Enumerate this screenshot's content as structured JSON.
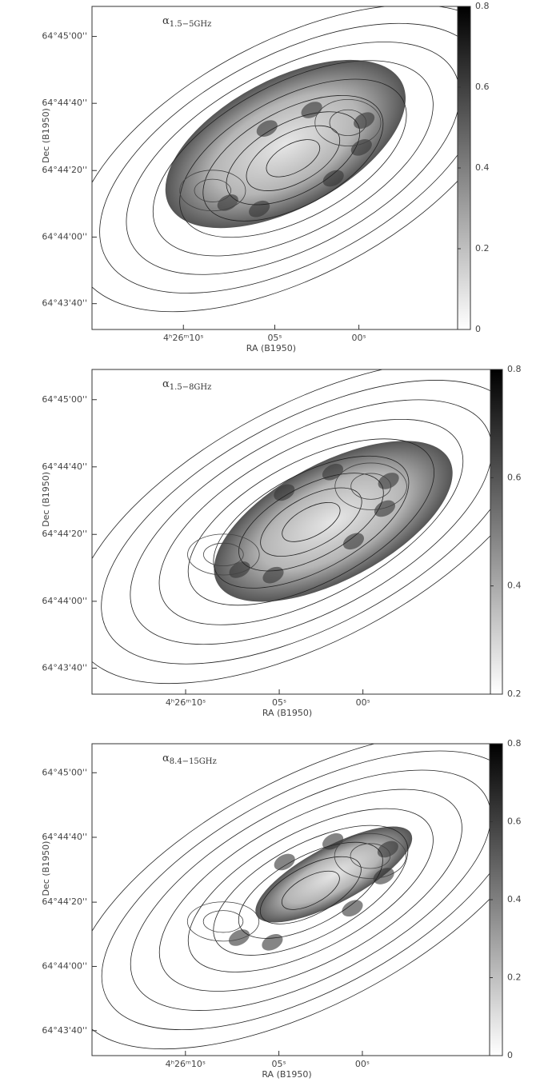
{
  "panels": [
    {
      "label": {
        "symbol": "α",
        "subscript": "1.5−5GHz"
      },
      "ylabel": "Dec (B1950)",
      "xlabel": "RA (B1950)",
      "yticks": [
        "64°45'00''",
        "64°44'40''",
        "64°44'20''",
        "64°44'00''",
        "64°43'40''"
      ],
      "xticks": [
        "4ʰ26ᵐ10ˢ",
        "05ˢ",
        "00ˢ"
      ],
      "colorbar_ticks": [
        0,
        0.2,
        0.4,
        0.6,
        0.8
      ]
    },
    {
      "label": {
        "symbol": "α",
        "subscript": "1.5−8GHz"
      },
      "ylabel": "Dec (B1950)",
      "xlabel": "RA (B1950)",
      "yticks": [
        "64°45'00''",
        "64°44'40''",
        "64°44'20''",
        "64°44'00''",
        "64°43'40''"
      ],
      "xticks": [
        "4ʰ26ᵐ10ˢ",
        "05ˢ",
        "00ˢ"
      ],
      "colorbar_ticks": [
        0.2,
        0.4,
        0.6,
        0.8
      ]
    },
    {
      "label": {
        "symbol": "α",
        "subscript": "8.4−15GHz"
      },
      "ylabel": "Dec (B1950)",
      "xlabel": "RA (B1950)",
      "yticks": [
        "64°45'00''",
        "64°44'40''",
        "64°44'20''",
        "64°44'00''",
        "64°43'40''"
      ],
      "xticks": [
        "4ʰ26ᵐ10ˢ",
        "05ˢ",
        "00ˢ"
      ],
      "colorbar_ticks": [
        0,
        0.2,
        0.4,
        0.6,
        0.8
      ]
    }
  ]
}
